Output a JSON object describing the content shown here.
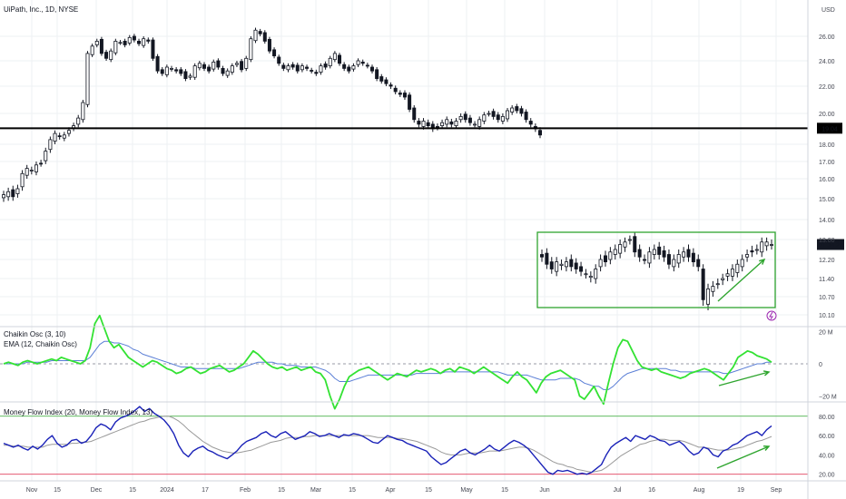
{
  "title": "UiPath, Inc., 1D, NYSE",
  "currency": "USD",
  "colors": {
    "background": "#ffffff",
    "candle": "#131722",
    "grid": "#eef0f3",
    "horizontal_line": "#000000",
    "rectangle": "#2fa52f",
    "arrow": "#2fa52f",
    "chaikin": "#33e233",
    "ema": "#5b7fd6",
    "mfi": "#1a22b8",
    "mfi_ma": "#9a9a9a",
    "mfi_upper": "#2fa52f",
    "mfi_lower": "#e0415e",
    "alert": "#9c27b0"
  },
  "chart_data": [
    {
      "type": "candlestick",
      "title": "UiPath, Inc., 1D, NYSE",
      "ylabel": "USD",
      "x_ticks": [
        "Nov",
        "15",
        "Dec",
        "15",
        "2024",
        "17",
        "Feb",
        "15",
        "Mar",
        "15",
        "Apr",
        "15",
        "May",
        "15",
        "Jun",
        "Jul",
        "16",
        "Aug",
        "19",
        "Sep"
      ],
      "y_ticks": [
        "26.00",
        "24.00",
        "22.00",
        "20.00",
        "18.00",
        "17.00",
        "16.00",
        "15.00",
        "14.00",
        "13.00",
        "12.20",
        "11.40",
        "10.70",
        "10.10"
      ],
      "horizontal_line": {
        "value": 19.04,
        "label": "19.04"
      },
      "last_price": {
        "value": 12.8,
        "label": "01:34:28"
      },
      "close": [
        15.2,
        15.35,
        15.1,
        15.5,
        16.3,
        16.6,
        16.5,
        16.8,
        16.9,
        17.6,
        18.3,
        18.7,
        18.5,
        18.6,
        18.9,
        19.2,
        19.7,
        20.8,
        24.6,
        25.2,
        25.6,
        24.6,
        24.2,
        24.8,
        25.6,
        25.5,
        25.3,
        25.9,
        25.7,
        25.4,
        25.8,
        25.6,
        24.2,
        23.2,
        23.0,
        23.5,
        23.4,
        23.2,
        23.0,
        22.6,
        22.8,
        23.6,
        23.8,
        23.4,
        23.2,
        23.9,
        23.5,
        23.0,
        23.2,
        23.6,
        23.8,
        23.3,
        24.2,
        25.8,
        26.5,
        26.2,
        25.6,
        24.8,
        24.4,
        23.8,
        23.4,
        23.6,
        23.5,
        23.2,
        23.6,
        23.4,
        23.2,
        23.0,
        23.6,
        23.5,
        24.2,
        24.6,
        23.8,
        23.4,
        23.2,
        23.6,
        24.0,
        23.8,
        23.6,
        23.2,
        22.6,
        22.4,
        22.2,
        22.0,
        21.6,
        21.4,
        21.2,
        20.3,
        19.6,
        19.3,
        19.5,
        19.2,
        19.0,
        19.1,
        19.4,
        19.6,
        19.3,
        19.5,
        19.8,
        19.6,
        19.4,
        19.3,
        19.6,
        19.9,
        20.0,
        19.8,
        19.6,
        19.8,
        20.2,
        20.4,
        20.2,
        20.0,
        19.6,
        19.3,
        19.0,
        18.6,
        12.3,
        12.0,
        11.8,
        12.1,
        12.0,
        12.1,
        11.9,
        11.8,
        11.7,
        11.6,
        11.5,
        11.8,
        12.2,
        12.1,
        12.5,
        12.6,
        12.8,
        12.9,
        13.0,
        12.5,
        12.3,
        12.2,
        12.5,
        12.6,
        12.4,
        12.3,
        12.0,
        12.2,
        12.4,
        12.5,
        12.3,
        12.1,
        11.9,
        10.6,
        11.0,
        11.1,
        11.2,
        11.4,
        11.6,
        11.8,
        12.0,
        12.2,
        12.4,
        12.5,
        12.6,
        12.9,
        12.9,
        12.8
      ]
    },
    {
      "type": "line",
      "title": "Chaikin Osc (3, 10)",
      "series": [
        {
          "name": "Chaikin Osc (3, 10)",
          "values": [
            0,
            1,
            0,
            -1,
            1,
            2,
            1,
            0,
            1,
            2,
            3,
            2,
            4,
            3,
            2,
            1,
            0,
            2,
            10,
            25,
            30,
            22,
            14,
            10,
            12,
            8,
            4,
            2,
            0,
            -2,
            0,
            2,
            1,
            -1,
            -3,
            -4,
            -6,
            -5,
            -3,
            -2,
            -4,
            -6,
            -5,
            -3,
            -2,
            -1,
            -3,
            -5,
            -4,
            -2,
            0,
            4,
            8,
            6,
            3,
            0,
            -2,
            -3,
            -2,
            -4,
            -3,
            -2,
            -4,
            -3,
            -2,
            -5,
            -6,
            -10,
            -20,
            -28,
            -22,
            -14,
            -8,
            -6,
            -4,
            -3,
            -2,
            -4,
            -6,
            -8,
            -10,
            -8,
            -6,
            -7,
            -8,
            -6,
            -4,
            -5,
            -4,
            -3,
            -4,
            -6,
            -4,
            -3,
            -5,
            -2,
            -3,
            -4,
            -6,
            -4,
            -2,
            -4,
            -6,
            -8,
            -10,
            -12,
            -8,
            -5,
            -8,
            -10,
            -14,
            -18,
            -12,
            -8,
            -6,
            -5,
            -4,
            -6,
            -8,
            -10,
            -20,
            -22,
            -18,
            -14,
            -20,
            -25,
            -12,
            0,
            10,
            15,
            14,
            8,
            2,
            -2,
            -3,
            -4,
            -3,
            -5,
            -6,
            -7,
            -8,
            -9,
            -8,
            -6,
            -5,
            -4,
            -3,
            -4,
            -6,
            -8,
            -10,
            -6,
            -2,
            4,
            6,
            8,
            7,
            5,
            4,
            3,
            1
          ]
        },
        {
          "name": "EMA (12, Chaikin Osc)",
          "values": [
            0,
            0,
            0,
            0,
            0,
            1,
            1,
            1,
            1,
            1,
            2,
            2,
            2,
            2,
            2,
            2,
            2,
            2,
            4,
            8,
            12,
            14,
            14,
            13,
            13,
            12,
            11,
            9,
            8,
            6,
            5,
            4,
            3,
            2,
            1,
            0,
            -1,
            -2,
            -2,
            -2,
            -3,
            -3,
            -3,
            -3,
            -3,
            -3,
            -3,
            -3,
            -3,
            -3,
            -2,
            -1,
            0,
            1,
            1,
            1,
            1,
            0,
            0,
            -1,
            -1,
            -1,
            -2,
            -2,
            -2,
            -2,
            -3,
            -4,
            -6,
            -9,
            -11,
            -11,
            -11,
            -10,
            -9,
            -8,
            -7,
            -7,
            -7,
            -7,
            -7,
            -7,
            -7,
            -7,
            -7,
            -7,
            -6,
            -6,
            -6,
            -6,
            -6,
            -6,
            -5,
            -5,
            -5,
            -5,
            -5,
            -5,
            -5,
            -5,
            -5,
            -5,
            -5,
            -5,
            -6,
            -7,
            -7,
            -7,
            -7,
            -7,
            -8,
            -9,
            -10,
            -10,
            -10,
            -10,
            -9,
            -9,
            -9,
            -9,
            -10,
            -12,
            -13,
            -14,
            -14,
            -16,
            -16,
            -14,
            -11,
            -8,
            -6,
            -5,
            -4,
            -3,
            -3,
            -3,
            -3,
            -3,
            -3,
            -4,
            -4,
            -5,
            -5,
            -5,
            -5,
            -5,
            -5,
            -5,
            -5,
            -5,
            -6,
            -6,
            -5,
            -4,
            -3,
            -2,
            -1,
            0,
            0,
            1,
            1
          ]
        }
      ],
      "y_ticks": [
        "20 M",
        "0",
        "−20 M"
      ],
      "ylim": [
        -22,
        22
      ]
    },
    {
      "type": "line",
      "title": "Money Flow Index (20, Money Flow Index, 13)",
      "series": [
        {
          "name": "Money Flow Index (20)",
          "values": [
            52,
            50,
            48,
            50,
            47,
            45,
            49,
            46,
            50,
            56,
            60,
            52,
            48,
            50,
            55,
            56,
            52,
            54,
            60,
            68,
            72,
            70,
            66,
            74,
            78,
            80,
            82,
            86,
            90,
            85,
            88,
            83,
            80,
            76,
            70,
            62,
            50,
            42,
            38,
            44,
            47,
            49,
            45,
            43,
            40,
            38,
            36,
            40,
            44,
            50,
            54,
            56,
            58,
            62,
            64,
            60,
            58,
            62,
            64,
            60,
            56,
            58,
            60,
            64,
            62,
            59,
            60,
            62,
            60,
            58,
            61,
            60,
            62,
            61,
            59,
            56,
            53,
            52,
            56,
            60,
            58,
            56,
            55,
            52,
            50,
            48,
            46,
            44,
            38,
            34,
            30,
            32,
            36,
            40,
            44,
            46,
            42,
            40,
            43,
            46,
            50,
            46,
            44,
            48,
            52,
            55,
            53,
            50,
            46,
            40,
            34,
            28,
            22,
            20,
            24,
            23,
            24,
            22,
            20,
            21,
            20,
            22,
            26,
            30,
            40,
            48,
            52,
            55,
            58,
            54,
            60,
            58,
            56,
            60,
            58,
            55,
            54,
            50,
            52,
            54,
            50,
            44,
            40,
            42,
            48,
            46,
            40,
            38,
            44,
            46,
            50,
            52,
            56,
            60,
            62,
            64,
            60,
            66,
            70
          ]
        },
        {
          "name": "Money Flow Index (13)",
          "values": [
            50,
            50,
            49,
            49,
            49,
            48,
            48,
            48,
            48,
            50,
            51,
            51,
            51,
            51,
            52,
            52,
            53,
            53,
            54,
            56,
            58,
            60,
            62,
            64,
            66,
            68,
            70,
            72,
            74,
            75,
            77,
            78,
            79,
            80,
            80,
            78,
            75,
            71,
            66,
            62,
            58,
            54,
            51,
            48,
            46,
            44,
            43,
            42,
            42,
            43,
            44,
            45,
            47,
            49,
            51,
            53,
            54,
            55,
            57,
            58,
            58,
            58,
            59,
            59,
            60,
            60,
            60,
            60,
            60,
            60,
            60,
            60,
            60,
            60,
            60,
            60,
            59,
            58,
            58,
            58,
            58,
            57,
            57,
            56,
            55,
            54,
            52,
            50,
            48,
            46,
            43,
            41,
            40,
            40,
            40,
            41,
            42,
            42,
            42,
            43,
            44,
            44,
            44,
            45,
            46,
            47,
            48,
            48,
            47,
            45,
            42,
            39,
            36,
            33,
            31,
            30,
            28,
            27,
            25,
            24,
            23,
            22,
            23,
            24,
            27,
            31,
            35,
            39,
            42,
            45,
            48,
            51,
            52,
            54,
            55,
            56,
            56,
            55,
            55,
            55,
            54,
            52,
            50,
            48,
            48,
            47,
            46,
            45,
            45,
            45,
            46,
            47,
            48,
            50,
            52,
            54,
            55,
            57,
            59
          ]
        }
      ],
      "levels": [
        80,
        20
      ],
      "y_ticks": [
        "80.00",
        "60.00",
        "40.00",
        "20.00"
      ],
      "ylim": [
        15,
        92
      ]
    }
  ]
}
